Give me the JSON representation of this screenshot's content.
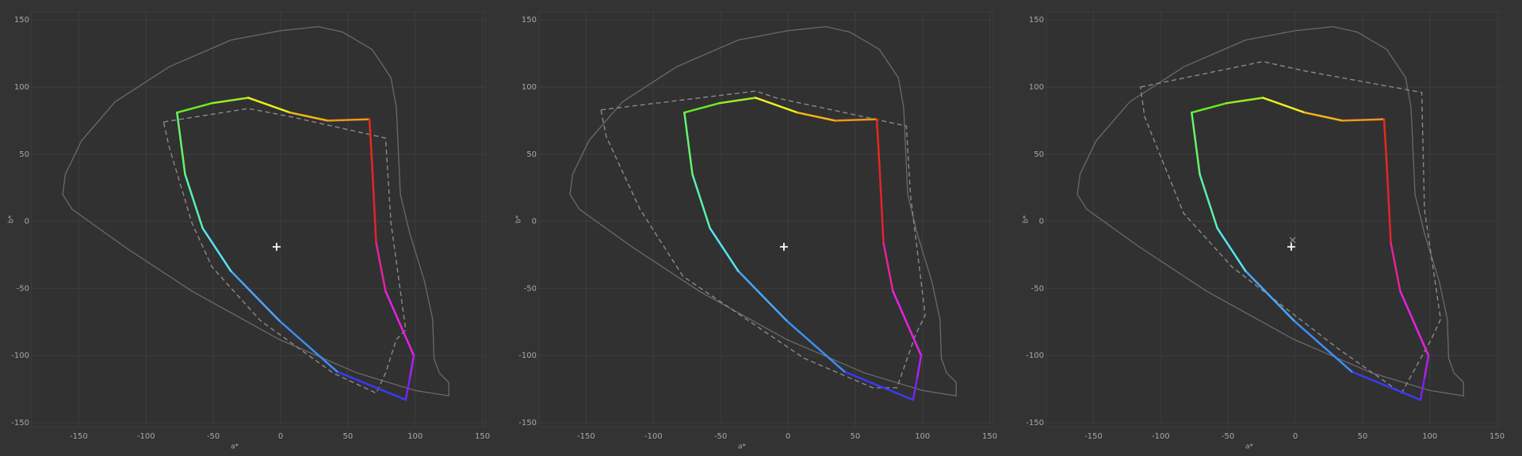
{
  "chart_data": [
    {
      "type": "line",
      "xlabel": "a*",
      "ylabel": "b*",
      "xlim": [
        -185,
        152
      ],
      "ylim": [
        -153,
        156
      ],
      "xticks": [
        -150,
        -100,
        -50,
        0,
        50,
        100,
        150
      ],
      "yticks": [
        -150,
        -100,
        -50,
        0,
        50,
        100,
        150
      ],
      "grid": true,
      "series": [
        {
          "style": "solid",
          "closed": true,
          "color": "#6a6a6a",
          "x": [
            19,
            0,
            -37,
            -83,
            -123,
            -148,
            -160,
            -162,
            -155,
            -116,
            -66,
            -1,
            57,
            100,
            125,
            125,
            118,
            114,
            113,
            107,
            96,
            89,
            86,
            82,
            68,
            46,
            28
          ],
          "y": [
            144,
            142,
            135,
            115,
            89,
            60,
            35,
            20,
            9,
            -19,
            -52,
            -88,
            -113,
            -126,
            -130,
            -120,
            -113,
            -102,
            -73,
            -45,
            -9,
            20,
            85,
            107,
            128,
            141,
            145
          ]
        },
        {
          "style": "dashed",
          "closed": true,
          "color": "#8a8a8a",
          "x": [
            -87,
            -24,
            7,
            78,
            82,
            93,
            86,
            78,
            71,
            39,
            -15,
            -51,
            -66,
            -83
          ],
          "y": [
            74,
            84,
            78,
            62,
            -1,
            -81,
            -88,
            -113,
            -128,
            -113,
            -74,
            -34,
            -1,
            56
          ]
        },
        {
          "style": "gradient",
          "closed": true,
          "x": [
            -77,
            -51,
            -24,
            7,
            35,
            66,
            68,
            71,
            78,
            99,
            96,
            93,
            42,
            -1,
            -37,
            -58,
            -71
          ],
          "y": [
            81,
            88,
            92,
            81,
            75,
            76,
            42,
            -16,
            -52,
            -100,
            -117,
            -133,
            -112,
            -74,
            -37,
            -5,
            35
          ],
          "colors": [
            "#66ee22",
            "#99ee22",
            "#eeee22",
            "#f5b518",
            "#f59418",
            "#e62a1e",
            "#e6222e",
            "#e6229a",
            "#e622e0",
            "#b022f0",
            "#7a22f0",
            "#3a3af5",
            "#3d8ef5",
            "#4aa6f5",
            "#55e6ee",
            "#5af0b0",
            "#66f26a"
          ]
        }
      ],
      "markers": [
        {
          "symbol": "plus",
          "x": -3,
          "y": -19
        }
      ]
    },
    {
      "type": "line",
      "xlabel": "a*",
      "ylabel": "b*",
      "xlim": [
        -185,
        152
      ],
      "ylim": [
        -153,
        156
      ],
      "xticks": [
        -150,
        -100,
        -50,
        0,
        50,
        100,
        150
      ],
      "yticks": [
        -150,
        -100,
        -50,
        0,
        50,
        100,
        150
      ],
      "grid": true,
      "series": [
        {
          "style": "solid",
          "closed": true,
          "color": "#6a6a6a",
          "x": [
            19,
            0,
            -37,
            -83,
            -123,
            -148,
            -160,
            -162,
            -155,
            -116,
            -66,
            -1,
            57,
            100,
            125,
            125,
            118,
            114,
            113,
            107,
            96,
            89,
            86,
            82,
            68,
            46,
            28
          ],
          "y": [
            144,
            142,
            135,
            115,
            89,
            60,
            35,
            20,
            9,
            -19,
            -52,
            -88,
            -113,
            -126,
            -130,
            -120,
            -113,
            -102,
            -73,
            -45,
            -9,
            20,
            85,
            107,
            128,
            141,
            145
          ]
        },
        {
          "style": "dashed",
          "closed": true,
          "color": "#8a8a8a",
          "x": [
            -139,
            -24,
            -9,
            88,
            91,
            102,
            95,
            81,
            63,
            12,
            -78,
            -110,
            -135
          ],
          "y": [
            83,
            97,
            92,
            71,
            20,
            -70,
            -84,
            -124,
            -124,
            -102,
            -41,
            9,
            63
          ]
        },
        {
          "style": "gradient",
          "closed": true,
          "x": [
            -77,
            -51,
            -24,
            7,
            35,
            66,
            68,
            71,
            78,
            99,
            96,
            93,
            42,
            -1,
            -37,
            -58,
            -71
          ],
          "y": [
            81,
            88,
            92,
            81,
            75,
            76,
            42,
            -16,
            -52,
            -100,
            -117,
            -133,
            -112,
            -74,
            -37,
            -5,
            35
          ],
          "colors": [
            "#66ee22",
            "#99ee22",
            "#eeee22",
            "#f5b518",
            "#f59418",
            "#e62a1e",
            "#e6222e",
            "#e6229a",
            "#e622e0",
            "#b022f0",
            "#7a22f0",
            "#3a3af5",
            "#3d8ef5",
            "#4aa6f5",
            "#55e6ee",
            "#5af0b0",
            "#66f26a"
          ]
        }
      ],
      "markers": [
        {
          "symbol": "plus",
          "x": -3,
          "y": -19
        }
      ]
    },
    {
      "type": "line",
      "xlabel": "a*",
      "ylabel": "b*",
      "xlim": [
        -185,
        152
      ],
      "ylim": [
        -153,
        156
      ],
      "xticks": [
        -150,
        -100,
        -50,
        0,
        50,
        100,
        150
      ],
      "yticks": [
        -150,
        -100,
        -50,
        0,
        50,
        100,
        150
      ],
      "grid": true,
      "series": [
        {
          "style": "solid",
          "closed": true,
          "color": "#6a6a6a",
          "x": [
            19,
            0,
            -37,
            -83,
            -123,
            -148,
            -160,
            -162,
            -155,
            -116,
            -66,
            -1,
            57,
            100,
            125,
            125,
            118,
            114,
            113,
            107,
            96,
            89,
            86,
            82,
            68,
            46,
            28
          ],
          "y": [
            144,
            142,
            135,
            115,
            89,
            60,
            35,
            20,
            9,
            -19,
            -52,
            -88,
            -113,
            -126,
            -130,
            -120,
            -113,
            -102,
            -73,
            -45,
            -9,
            20,
            85,
            107,
            128,
            141,
            145
          ]
        },
        {
          "style": "dashed",
          "closed": true,
          "color": "#8a8a8a",
          "x": [
            -115,
            -24,
            7,
            94,
            96,
            108,
            101,
            79,
            32,
            -47,
            -83,
            -112
          ],
          "y": [
            100,
            119,
            112,
            96,
            9,
            -73,
            -88,
            -128,
            -95,
            -34,
            6,
            78
          ]
        },
        {
          "style": "gradient",
          "closed": true,
          "x": [
            -77,
            -51,
            -24,
            7,
            35,
            66,
            68,
            71,
            78,
            99,
            96,
            93,
            42,
            -1,
            -37,
            -58,
            -71
          ],
          "y": [
            81,
            88,
            92,
            81,
            75,
            76,
            42,
            -16,
            -52,
            -100,
            -117,
            -133,
            -112,
            -74,
            -37,
            -5,
            35
          ],
          "colors": [
            "#66ee22",
            "#99ee22",
            "#eeee22",
            "#f5b518",
            "#f59418",
            "#e62a1e",
            "#e6222e",
            "#e6229a",
            "#e622e0",
            "#b022f0",
            "#7a22f0",
            "#3a3af5",
            "#3d8ef5",
            "#4aa6f5",
            "#55e6ee",
            "#5af0b0",
            "#66f26a"
          ]
        }
      ],
      "markers": [
        {
          "symbol": "plus",
          "x": -3,
          "y": -19
        },
        {
          "symbol": "cross",
          "x": -2,
          "y": -14
        }
      ]
    }
  ]
}
